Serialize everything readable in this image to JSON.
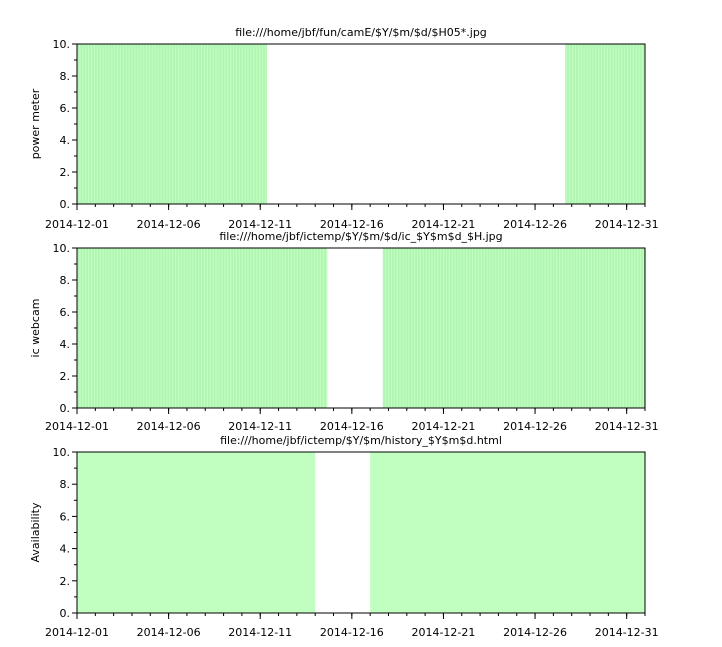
{
  "chart_data": [
    {
      "type": "bar",
      "title": "file:///home/jbf/fun/camE/$Y/$m/$d/$H05*.jpg",
      "xlabel": "",
      "ylabel": "power meter",
      "xlim": [
        "2014-12-01",
        "2015-01-01"
      ],
      "ylim": [
        0,
        10
      ],
      "xticks": [
        "2014-12-01",
        "2014-12-06",
        "2014-12-11",
        "2014-12-16",
        "2014-12-21",
        "2014-12-26",
        "2014-12-31"
      ],
      "yticks": [
        "0.",
        "2.",
        "4.",
        "6.",
        "8.",
        "10."
      ],
      "available_intervals": [
        [
          "2014-12-01T00:00",
          "2014-12-11T09:00"
        ],
        [
          "2014-12-27T16:00",
          "2015-01-01T00:00"
        ]
      ],
      "value": 10,
      "bar_style": "hourly"
    },
    {
      "type": "bar",
      "title": "file:///home/jbf/ictemp/$Y/$m/$d/ic_$Y$m$d_$H.jpg",
      "xlabel": "",
      "ylabel": "ic webcam",
      "xlim": [
        "2014-12-01",
        "2015-01-01"
      ],
      "ylim": [
        0,
        10
      ],
      "xticks": [
        "2014-12-01",
        "2014-12-06",
        "2014-12-11",
        "2014-12-16",
        "2014-12-21",
        "2014-12-26",
        "2014-12-31"
      ],
      "yticks": [
        "0.",
        "2.",
        "4.",
        "6.",
        "8.",
        "10."
      ],
      "available_intervals": [
        [
          "2014-12-01T00:00",
          "2014-12-14T16:00"
        ],
        [
          "2014-12-17T17:00",
          "2015-01-01T00:00"
        ]
      ],
      "value": 10,
      "bar_style": "hourly"
    },
    {
      "type": "bar",
      "title": "file:///home/jbf/ictemp/$Y/$m/history_$Y$m$d.html",
      "xlabel": "",
      "ylabel": "Availability",
      "xlim": [
        "2014-12-01",
        "2015-01-01"
      ],
      "ylim": [
        0,
        10
      ],
      "xticks": [
        "2014-12-01",
        "2014-12-06",
        "2014-12-11",
        "2014-12-16",
        "2014-12-21",
        "2014-12-26",
        "2014-12-31"
      ],
      "yticks": [
        "0.",
        "2.",
        "4.",
        "6.",
        "8.",
        "10."
      ],
      "available_intervals": [
        [
          "2014-12-01T00:00",
          "2014-12-14T00:00"
        ],
        [
          "2014-12-17T00:00",
          "2015-01-01T00:00"
        ]
      ],
      "value": 10,
      "bar_style": "daily"
    }
  ],
  "colors": {
    "fill": "#c0ffc0",
    "hour_line": "#a8eda8",
    "axis": "#000000"
  }
}
